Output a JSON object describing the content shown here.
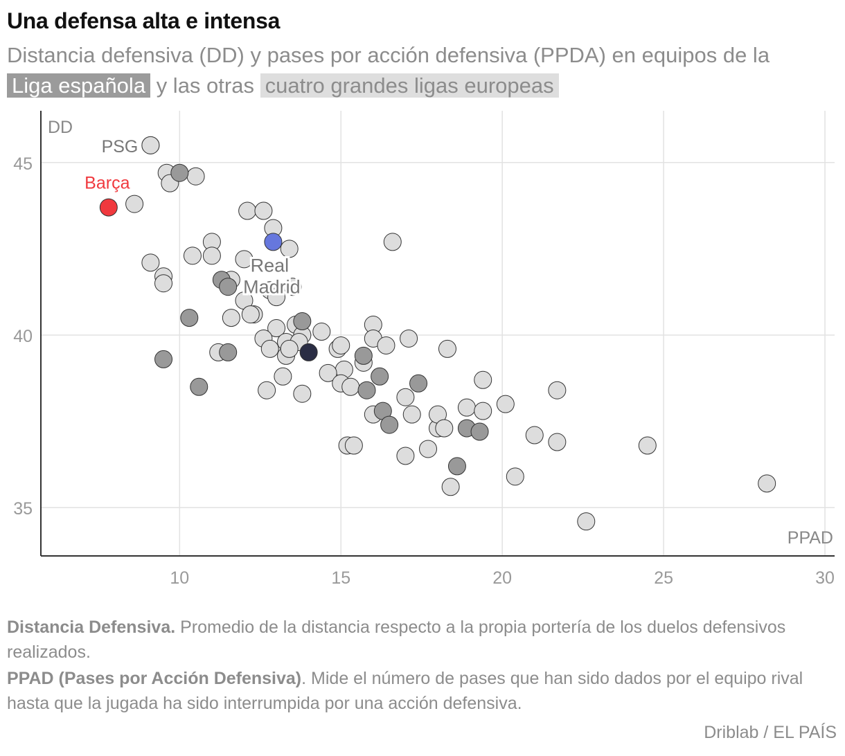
{
  "header": {
    "title": "Una defensa alta e intensa",
    "subtitle_part1": "Distancia defensiva (DD) y pases por acción defensiva (PPDA) en equipos de la",
    "legend_spain": "Liga española",
    "subtitle_part2": "y las otras",
    "legend_other": "cuatro grandes ligas europeas"
  },
  "colors": {
    "spain": "#999999",
    "other": "#dddddd",
    "barca": "#f0393e",
    "real_madrid": "#6677dd",
    "highlight_dark": "#2a2d44",
    "grid": "#e2e2e2",
    "axis": "#333333",
    "label": "#888888"
  },
  "chart_data": {
    "type": "scatter",
    "xlabel": "PPAD",
    "ylabel": "DD",
    "xlim": [
      5.7,
      30.3
    ],
    "ylim": [
      33.6,
      46.5
    ],
    "xticks": [
      10,
      15,
      20,
      25,
      30
    ],
    "yticks": [
      35,
      40,
      45
    ],
    "grid": true,
    "series": [
      {
        "name": "cuatro grandes ligas europeas",
        "points": [
          [
            9.1,
            45.5
          ],
          [
            9.6,
            44.7
          ],
          [
            9.7,
            44.4
          ],
          [
            10.5,
            44.6
          ],
          [
            8.6,
            43.8
          ],
          [
            12.1,
            43.6
          ],
          [
            12.6,
            43.6
          ],
          [
            12.9,
            43.1
          ],
          [
            13.4,
            42.5
          ],
          [
            11.0,
            42.7
          ],
          [
            10.4,
            42.3
          ],
          [
            11.0,
            42.3
          ],
          [
            9.1,
            42.1
          ],
          [
            9.5,
            41.7
          ],
          [
            9.5,
            41.5
          ],
          [
            12.0,
            42.2
          ],
          [
            11.6,
            41.6
          ],
          [
            12.0,
            41.0
          ],
          [
            12.8,
            41.3
          ],
          [
            13.5,
            41.4
          ],
          [
            13.0,
            41.1
          ],
          [
            11.6,
            40.5
          ],
          [
            12.3,
            40.6
          ],
          [
            12.2,
            40.6
          ],
          [
            13.0,
            40.2
          ],
          [
            13.6,
            40.3
          ],
          [
            12.6,
            39.9
          ],
          [
            13.3,
            39.8
          ],
          [
            12.8,
            39.6
          ],
          [
            13.3,
            39.4
          ],
          [
            13.8,
            40.0
          ],
          [
            13.7,
            39.8
          ],
          [
            13.4,
            39.6
          ],
          [
            14.4,
            40.1
          ],
          [
            14.9,
            39.6
          ],
          [
            15.0,
            39.7
          ],
          [
            15.1,
            39.0
          ],
          [
            14.6,
            38.9
          ],
          [
            15.0,
            38.6
          ],
          [
            13.2,
            38.8
          ],
          [
            12.7,
            38.4
          ],
          [
            13.8,
            38.3
          ],
          [
            11.2,
            39.5
          ],
          [
            15.3,
            38.5
          ],
          [
            15.7,
            39.2
          ],
          [
            16.0,
            40.3
          ],
          [
            16.0,
            39.9
          ],
          [
            16.4,
            39.7
          ],
          [
            17.1,
            39.9
          ],
          [
            18.3,
            39.6
          ],
          [
            16.0,
            37.7
          ],
          [
            16.6,
            42.7
          ],
          [
            17.0,
            38.2
          ],
          [
            17.2,
            37.7
          ],
          [
            18.0,
            37.3
          ],
          [
            18.0,
            37.7
          ],
          [
            18.2,
            37.3
          ],
          [
            18.9,
            37.9
          ],
          [
            19.4,
            37.8
          ],
          [
            19.4,
            38.7
          ],
          [
            20.1,
            38.0
          ],
          [
            15.2,
            36.8
          ],
          [
            15.4,
            36.8
          ],
          [
            17.0,
            36.5
          ],
          [
            17.7,
            36.7
          ],
          [
            18.4,
            35.6
          ],
          [
            20.4,
            35.9
          ],
          [
            21.0,
            37.1
          ],
          [
            21.7,
            36.9
          ],
          [
            21.7,
            38.4
          ],
          [
            22.6,
            34.6
          ],
          [
            24.5,
            36.8
          ],
          [
            28.2,
            35.7
          ]
        ]
      },
      {
        "name": "Liga española",
        "points": [
          [
            10.0,
            44.7
          ],
          [
            11.3,
            41.6
          ],
          [
            11.5,
            41.4
          ],
          [
            10.3,
            40.5
          ],
          [
            9.5,
            39.3
          ],
          [
            11.5,
            39.5
          ],
          [
            10.6,
            38.5
          ],
          [
            13.8,
            40.4
          ],
          [
            15.7,
            39.4
          ],
          [
            16.2,
            38.8
          ],
          [
            15.8,
            38.4
          ],
          [
            17.4,
            38.6
          ],
          [
            16.3,
            37.8
          ],
          [
            16.5,
            37.4
          ],
          [
            18.9,
            37.3
          ],
          [
            19.3,
            37.2
          ],
          [
            18.6,
            36.2
          ]
        ]
      }
    ],
    "highlights": [
      {
        "label": "PSG",
        "x": 9.1,
        "y": 45.5,
        "color": "#dddddd"
      },
      {
        "label": "Barça",
        "x": 7.8,
        "y": 43.7,
        "color": "#f0393e"
      },
      {
        "label": "Real Madrid",
        "x": 12.9,
        "y": 42.7,
        "color": "#6677dd"
      },
      {
        "label": "",
        "x": 14.0,
        "y": 39.5,
        "color": "#2a2d44"
      }
    ]
  },
  "labels": {
    "psg": "PSG",
    "barca": "Barça",
    "real_line1": "Real",
    "real_line2": "Madrid"
  },
  "notes": {
    "dd_term": "Distancia Defensiva.",
    "dd_text": " Promedio de la distancia respecto a la propia portería de los duelos defensivos realizados.",
    "ppad_term": "PPAD (Pases por Acción Defensiva)",
    "ppad_text": ". Mide el número de pases que han sido dados por el equipo rival hasta que la jugada ha sido interrumpida por una acción defensiva."
  },
  "source": "Driblab / EL PAÍS"
}
